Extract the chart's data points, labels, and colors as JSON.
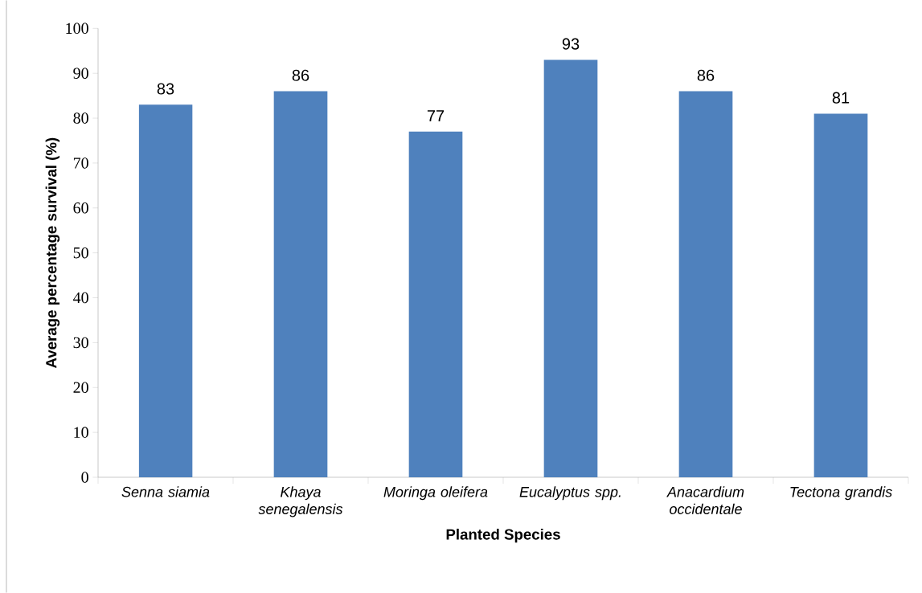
{
  "chart_data": {
    "type": "bar",
    "xlabel": "Planted Species",
    "ylabel": "Average percentage survival (%)",
    "categories": [
      "Senna siamia",
      "Khaya senegalensis",
      "Moringa oleifera",
      "Eucalyptus spp.",
      "Anacardium occidentale",
      "Tectona grandis"
    ],
    "values": [
      83,
      86,
      77,
      93,
      86,
      81
    ],
    "color": "#4f81bd",
    "ylim": [
      0,
      100
    ],
    "yticks": [
      0,
      10,
      20,
      30,
      40,
      50,
      60,
      70,
      80,
      90,
      100
    ],
    "grid": false,
    "data_labels": true
  }
}
